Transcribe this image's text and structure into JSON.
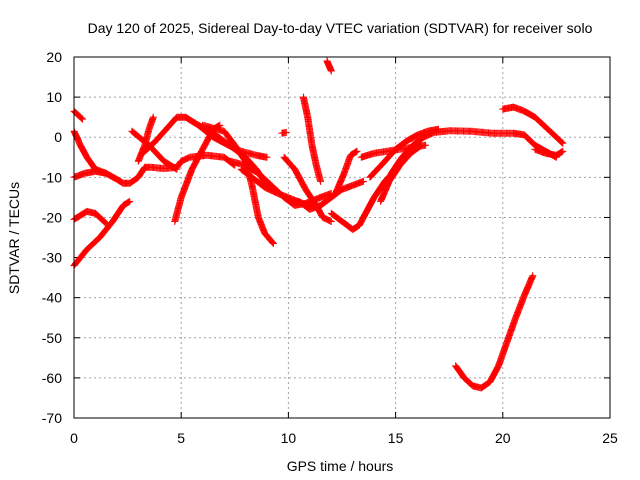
{
  "chart_data": {
    "type": "scatter",
    "title": "Day 120 of 2025, Sidereal Day-to-day VTEC variation (SDTVAR) for receiver solo",
    "xlabel": "GPS time / hours",
    "ylabel": "SDTVAR / TECUs",
    "xlim": [
      0,
      25
    ],
    "ylim": [
      -70,
      20
    ],
    "xticks": [
      0,
      5,
      10,
      15,
      20,
      25
    ],
    "yticks": [
      -70,
      -60,
      -50,
      -40,
      -30,
      -20,
      -10,
      0,
      10,
      20
    ],
    "grid": true,
    "legend": "none",
    "marker": "+",
    "colors": {
      "series": "#ff0000",
      "grid": "#a0a0a0",
      "axis": "#000000"
    },
    "series": [
      {
        "name": "arc-1",
        "points": [
          [
            0,
            -10
          ],
          [
            0.5,
            -9
          ],
          [
            1,
            -8.5
          ],
          [
            1.5,
            -9
          ],
          [
            2,
            -10.5
          ],
          [
            2.3,
            -11.5
          ],
          [
            2.6,
            -11.5
          ],
          [
            3,
            -10
          ],
          [
            3.3,
            -7.5
          ],
          [
            3.6,
            -7.5
          ],
          [
            4.2,
            -7.8
          ],
          [
            4.8,
            -7.5
          ],
          [
            5,
            -6
          ],
          [
            5.4,
            -5
          ],
          [
            6.2,
            -4.5
          ],
          [
            7,
            -5
          ],
          [
            7.5,
            -7
          ]
        ]
      },
      {
        "name": "arc-2",
        "points": [
          [
            0,
            -20.5
          ],
          [
            0.3,
            -19.5
          ],
          [
            0.6,
            -18.5
          ],
          [
            1,
            -19
          ],
          [
            1.5,
            -21.5
          ]
        ]
      },
      {
        "name": "arc-3",
        "points": [
          [
            0,
            -32
          ],
          [
            0.6,
            -28
          ],
          [
            1.2,
            -25
          ],
          [
            1.8,
            -21
          ],
          [
            2.3,
            -17
          ],
          [
            2.6,
            -16
          ]
        ]
      },
      {
        "name": "arc-4",
        "points": [
          [
            0,
            6.5
          ],
          [
            0.4,
            4.5
          ]
        ]
      },
      {
        "name": "arc-5",
        "points": [
          [
            0,
            1.5
          ],
          [
            0.3,
            -2
          ],
          [
            0.6,
            -5
          ],
          [
            1,
            -8
          ],
          [
            1.5,
            -9
          ]
        ]
      },
      {
        "name": "arc-6",
        "points": [
          [
            3,
            -6
          ],
          [
            3.3,
            -2
          ],
          [
            3.5,
            2
          ],
          [
            3.7,
            5
          ]
        ]
      },
      {
        "name": "arc-7",
        "points": [
          [
            2.7,
            1.5
          ],
          [
            3.5,
            -2
          ],
          [
            4.2,
            -6
          ],
          [
            4.8,
            -8
          ]
        ]
      },
      {
        "name": "arc-8",
        "points": [
          [
            3.2,
            -4
          ],
          [
            3.8,
            -1
          ],
          [
            4.3,
            2
          ],
          [
            4.8,
            5
          ],
          [
            5.2,
            5
          ],
          [
            5.8,
            3
          ],
          [
            6.5,
            1
          ],
          [
            7,
            -1
          ],
          [
            7.5,
            -3
          ],
          [
            8,
            -5
          ],
          [
            8.5,
            -8
          ],
          [
            9,
            -12
          ]
        ]
      },
      {
        "name": "arc-9",
        "points": [
          [
            4.7,
            -21
          ],
          [
            5,
            -15
          ],
          [
            5.5,
            -8
          ],
          [
            6,
            -3
          ],
          [
            6.5,
            2
          ],
          [
            6.8,
            3
          ]
        ]
      },
      {
        "name": "arc-10",
        "points": [
          [
            6,
            3
          ],
          [
            7,
            1.5
          ],
          [
            7.5,
            -2
          ],
          [
            8,
            -6
          ],
          [
            8.3,
            -12
          ],
          [
            8.6,
            -20
          ],
          [
            8.9,
            -24
          ],
          [
            9.3,
            -26.5
          ]
        ]
      },
      {
        "name": "arc-11",
        "points": [
          [
            5.8,
            3
          ],
          [
            6.5,
            0
          ],
          [
            7.2,
            -2
          ],
          [
            7.8,
            -3.5
          ],
          [
            8.5,
            -4.5
          ],
          [
            9,
            -5
          ]
        ]
      },
      {
        "name": "arc-12",
        "points": [
          [
            7.8,
            -8
          ],
          [
            8.3,
            -10
          ],
          [
            8.9,
            -12.5
          ],
          [
            9.5,
            -14
          ],
          [
            10.2,
            -15.5
          ],
          [
            10.8,
            -16.8
          ],
          [
            11.2,
            -17
          ]
        ]
      },
      {
        "name": "arc-13",
        "points": [
          [
            7.3,
            -6
          ],
          [
            8,
            -7
          ],
          [
            8.6,
            -9
          ],
          [
            9.2,
            -12
          ],
          [
            9.8,
            -15
          ],
          [
            10.3,
            -17
          ],
          [
            10.8,
            -16.5
          ],
          [
            11.5,
            -15
          ],
          [
            12,
            -14
          ]
        ]
      },
      {
        "name": "arc-14",
        "points": [
          [
            9.8,
            -5
          ],
          [
            10.3,
            -8
          ],
          [
            10.8,
            -13
          ],
          [
            11.3,
            -17
          ],
          [
            11.6,
            -20
          ],
          [
            12,
            -21
          ]
        ]
      },
      {
        "name": "arc-15",
        "points": [
          [
            10.7,
            10
          ],
          [
            10.9,
            5
          ],
          [
            11.1,
            -2
          ],
          [
            11.3,
            -7
          ],
          [
            11.5,
            -11
          ]
        ]
      },
      {
        "name": "arc-16",
        "points": [
          [
            11.8,
            19
          ],
          [
            12,
            16.5
          ]
        ]
      },
      {
        "name": "arc-17",
        "points": [
          [
            9.7,
            1
          ],
          [
            9.9,
            1.2
          ]
        ]
      },
      {
        "name": "arc-18",
        "points": [
          [
            10.5,
            -16
          ],
          [
            11,
            -18
          ],
          [
            11.5,
            -17
          ],
          [
            12,
            -15
          ],
          [
            12.5,
            -13
          ],
          [
            13,
            -12
          ],
          [
            13.5,
            -11
          ]
        ]
      },
      {
        "name": "arc-19",
        "points": [
          [
            12.2,
            -14
          ],
          [
            12.6,
            -9
          ],
          [
            12.9,
            -4.5
          ],
          [
            13.2,
            -3.5
          ]
        ]
      },
      {
        "name": "arc-20",
        "points": [
          [
            12,
            -19
          ],
          [
            12.5,
            -21
          ],
          [
            13,
            -23
          ],
          [
            13.3,
            -22
          ],
          [
            13.6,
            -19
          ],
          [
            14,
            -15
          ],
          [
            14.5,
            -11
          ],
          [
            15,
            -8
          ]
        ]
      },
      {
        "name": "arc-21",
        "points": [
          [
            13.4,
            -5
          ],
          [
            14,
            -4
          ],
          [
            14.6,
            -3.5
          ],
          [
            15.2,
            -3
          ],
          [
            15.8,
            -2.5
          ],
          [
            16.4,
            -2
          ]
        ]
      },
      {
        "name": "arc-22",
        "points": [
          [
            14.3,
            -16
          ],
          [
            14.7,
            -11
          ],
          [
            15.2,
            -7
          ],
          [
            15.7,
            -4
          ],
          [
            16.2,
            -2
          ]
        ]
      },
      {
        "name": "arc-23",
        "points": [
          [
            13.8,
            -10
          ],
          [
            14.5,
            -6
          ],
          [
            15,
            -3
          ],
          [
            15.5,
            -1
          ],
          [
            16,
            0.5
          ],
          [
            16.5,
            1.5
          ],
          [
            17,
            2
          ]
        ]
      },
      {
        "name": "arc-24",
        "points": [
          [
            14.8,
            -9
          ],
          [
            15.3,
            -5
          ],
          [
            15.8,
            -2
          ],
          [
            16.3,
            0
          ],
          [
            16.8,
            1.2
          ],
          [
            17.5,
            1.6
          ],
          [
            18.5,
            1.5
          ],
          [
            19.5,
            1
          ],
          [
            20.5,
            1
          ],
          [
            21,
            0.6
          ],
          [
            21.5,
            -2
          ],
          [
            22,
            -3.5
          ],
          [
            22.5,
            -5
          ]
        ]
      },
      {
        "name": "arc-25",
        "points": [
          [
            20,
            7
          ],
          [
            20.5,
            7.5
          ],
          [
            21,
            6.5
          ],
          [
            21.5,
            5
          ],
          [
            22,
            2.5
          ],
          [
            22.5,
            0
          ],
          [
            22.8,
            -1.5
          ]
        ]
      },
      {
        "name": "arc-26",
        "points": [
          [
            21.5,
            -3
          ],
          [
            22,
            -4
          ],
          [
            22.5,
            -4.5
          ],
          [
            22.8,
            -3.5
          ]
        ]
      },
      {
        "name": "arc-27",
        "points": [
          [
            17.8,
            -57
          ],
          [
            18.2,
            -60
          ],
          [
            18.6,
            -62
          ],
          [
            19,
            -62.5
          ],
          [
            19.4,
            -61
          ],
          [
            19.8,
            -57
          ],
          [
            20.2,
            -51
          ],
          [
            20.6,
            -45
          ],
          [
            21,
            -39.5
          ],
          [
            21.4,
            -34.5
          ]
        ]
      }
    ]
  }
}
